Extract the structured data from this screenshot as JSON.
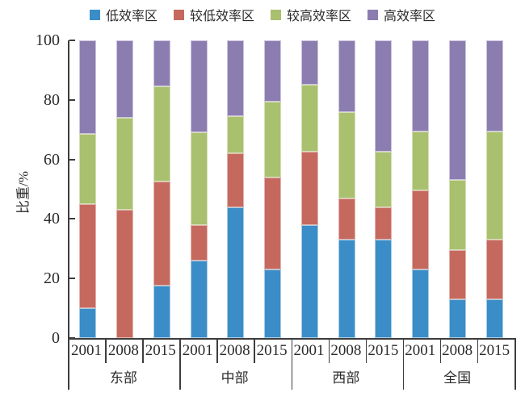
{
  "chart_data": {
    "type": "bar",
    "subtype": "stacked-percentage",
    "title": "",
    "ylabel": "比重/%",
    "ylim": [
      0,
      100
    ],
    "yticks": [
      0,
      20,
      40,
      60,
      80,
      100
    ],
    "grid": false,
    "legend_position": "top-center",
    "groups": [
      "东部",
      "中部",
      "西部",
      "全国"
    ],
    "years": [
      "2001",
      "2008",
      "2015"
    ],
    "bar_order_note": "values arrays list 12 bars: 东部2001,东部2008,东部2015,中部2001,中部2008,中部2015,西部2001,西部2008,西部2015,全国2001,全国2008,全国2015",
    "series": [
      {
        "name": "低效率区",
        "color": "#3A8DC6",
        "edge": "#A9CCE5",
        "values": [
          10,
          0,
          17.5,
          26,
          44,
          23,
          38,
          33,
          33,
          23,
          13,
          13
        ]
      },
      {
        "name": "较低效率区",
        "color": "#C5695F",
        "edge": "#E2B4AE",
        "values": [
          35,
          43,
          35,
          12,
          18,
          31,
          24.5,
          14,
          11,
          26.5,
          16.5,
          20
        ]
      },
      {
        "name": "较高效率区",
        "color": "#A9C06F",
        "edge": "#D6E0B8",
        "values": [
          23.5,
          31,
          32,
          31,
          12.5,
          25.5,
          22.5,
          29,
          18.5,
          20,
          23.5,
          36.5
        ]
      },
      {
        "name": "高效率区",
        "color": "#8C7DB0",
        "edge": "#CDC5DE",
        "values": [
          31.5,
          26,
          15.5,
          31,
          25.5,
          20.5,
          15,
          24,
          37.5,
          30.5,
          47,
          30.5
        ]
      }
    ]
  },
  "style": {
    "axis_color": "#3d3d3d",
    "text_color": "#2b2b2b",
    "background": "#ffffff"
  }
}
